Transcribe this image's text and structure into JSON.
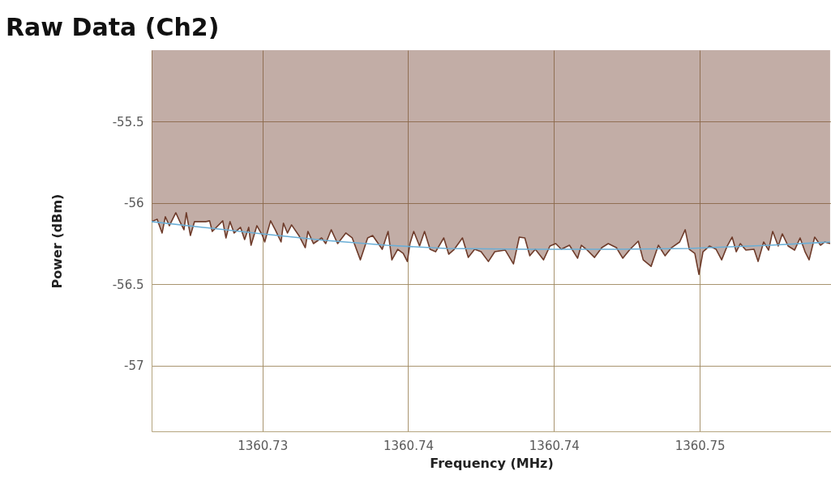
{
  "chart_data": {
    "type": "line",
    "title": "Raw Data (Ch2)",
    "xlabel": "Frequency (MHz)",
    "ylabel": "Power (dBm)",
    "xlim": [
      1360.7287,
      1360.752
    ],
    "ylim": [
      -57.405,
      -55.06
    ],
    "xticks": [
      {
        "value": 1360.7325,
        "label": "1360.73"
      },
      {
        "value": 1360.7375,
        "label": "1360.74"
      },
      {
        "value": 1360.7425,
        "label": "1360.74"
      },
      {
        "value": 1360.7475,
        "label": "1360.75"
      }
    ],
    "yticks": [
      -57,
      -56.5,
      -56,
      -55.5
    ],
    "grid": true,
    "marker": "none",
    "series": [
      {
        "type": "area",
        "color": "#6e3b2a",
        "x": [
          1360.7287,
          1360.72889,
          1360.72906,
          1360.72917,
          1360.72931,
          1360.72953,
          1360.72967,
          1360.72981,
          1360.72989,
          1360.73003,
          1360.73017,
          1360.73056,
          1360.73069,
          1360.73078,
          1360.73114,
          1360.73125,
          1360.73139,
          1360.73153,
          1360.73175,
          1360.73189,
          1360.73203,
          1360.73211,
          1360.73231,
          1360.7325,
          1360.73258,
          1360.73278,
          1360.73294,
          1360.73314,
          1360.73322,
          1360.73336,
          1360.7335,
          1360.73375,
          1360.73397,
          1360.73406,
          1360.73425,
          1360.73453,
          1360.73467,
          1360.73486,
          1360.73508,
          1360.73536,
          1360.73558,
          1360.73586,
          1360.73611,
          1360.73628,
          1360.73661,
          1360.73681,
          1360.73694,
          1360.73714,
          1360.73733,
          1360.73747,
          1360.73756,
          1360.73769,
          1360.73789,
          1360.73806,
          1360.73825,
          1360.73844,
          1360.73872,
          1360.73889,
          1360.73908,
          1360.73936,
          1360.73956,
          1360.73978,
          1360.74,
          1360.74025,
          1360.74047,
          1360.74083,
          1360.74111,
          1360.74131,
          1360.7415,
          1360.74167,
          1360.74186,
          1360.74214,
          1360.74236,
          1360.74256,
          1360.74275,
          1360.74303,
          1360.74331,
          1360.74344,
          1360.74361,
          1360.74389,
          1360.74414,
          1360.74436,
          1360.74464,
          1360.74486,
          1360.74511,
          1360.74539,
          1360.74556,
          1360.74583,
          1360.74608,
          1360.74631,
          1360.74653,
          1360.74681,
          1360.747,
          1360.74714,
          1360.74733,
          1360.74747,
          1360.74761,
          1360.74783,
          1360.74806,
          1360.74825,
          1360.74844,
          1360.74861,
          1360.74875,
          1360.74889,
          1360.74908,
          1360.74936,
          1360.7495,
          1360.74969,
          1360.74986,
          1360.75,
          1360.75019,
          1360.75033,
          1360.75053,
          1360.75075,
          1360.75094,
          1360.75111,
          1360.75125,
          1360.75144,
          1360.75164,
          1360.75178,
          1360.75197
        ],
        "values": [
          -56.115,
          -56.1,
          -56.185,
          -56.085,
          -56.14,
          -56.06,
          -56.115,
          -56.165,
          -56.06,
          -56.2,
          -56.115,
          -56.115,
          -56.11,
          -56.175,
          -56.11,
          -56.215,
          -56.115,
          -56.185,
          -56.15,
          -56.225,
          -56.15,
          -56.26,
          -56.14,
          -56.2,
          -56.24,
          -56.11,
          -56.165,
          -56.24,
          -56.125,
          -56.185,
          -56.135,
          -56.2,
          -56.275,
          -56.175,
          -56.25,
          -56.215,
          -56.25,
          -56.165,
          -56.25,
          -56.185,
          -56.215,
          -56.35,
          -56.215,
          -56.2,
          -56.285,
          -56.175,
          -56.35,
          -56.285,
          -56.31,
          -56.36,
          -56.25,
          -56.175,
          -56.265,
          -56.175,
          -56.285,
          -56.3,
          -56.215,
          -56.315,
          -56.285,
          -56.215,
          -56.335,
          -56.285,
          -56.3,
          -56.36,
          -56.3,
          -56.29,
          -56.375,
          -56.21,
          -56.215,
          -56.325,
          -56.285,
          -56.35,
          -56.265,
          -56.25,
          -56.285,
          -56.26,
          -56.34,
          -56.26,
          -56.285,
          -56.335,
          -56.275,
          -56.25,
          -56.275,
          -56.34,
          -56.285,
          -56.235,
          -56.35,
          -56.39,
          -56.26,
          -56.325,
          -56.275,
          -56.24,
          -56.165,
          -56.285,
          -56.31,
          -56.44,
          -56.3,
          -56.265,
          -56.285,
          -56.35,
          -56.265,
          -56.21,
          -56.3,
          -56.25,
          -56.29,
          -56.285,
          -56.36,
          -56.24,
          -56.29,
          -56.175,
          -56.265,
          -56.19,
          -56.265,
          -56.29,
          -56.215,
          -56.3,
          -56.35,
          -56.21,
          -56.26,
          -56.24,
          -56.25
        ]
      },
      {
        "color": "#6aaed6",
        "x": [
          1360.7287,
          1360.73047,
          1360.7325,
          1360.73464,
          1360.73675,
          1360.73881,
          1360.74158,
          1360.74464,
          1360.74714,
          1360.74992,
          1360.75197
        ],
        "values": [
          -56.115,
          -56.15,
          -56.19,
          -56.23,
          -56.26,
          -56.28,
          -56.285,
          -56.285,
          -56.28,
          -56.26,
          -56.24
        ]
      }
    ]
  }
}
